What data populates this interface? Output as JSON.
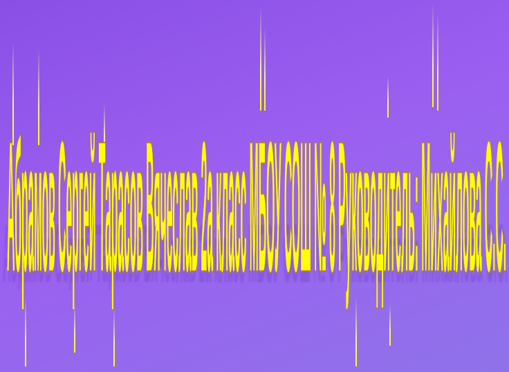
{
  "slide": {
    "title": "Абрамов Сергей Тарасов Вячеслав 2а класс МБОУ СОШ № 8 Руководитель: Михайлова С.С.",
    "colors": {
      "background": "#9b5ff0",
      "text_fill": "#ffff00",
      "text_outline": "#b8860b",
      "shadow": "#6b3fbf"
    }
  }
}
